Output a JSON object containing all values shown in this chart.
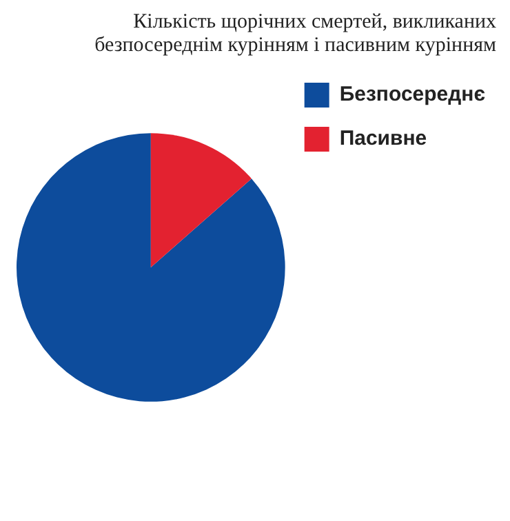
{
  "chart_data": {
    "type": "pie",
    "title": "Кількість щорічних смертей, викликаних безпосереднім курінням і пасивним курінням",
    "categories": [
      "Безпосереднє",
      "Пасивне"
    ],
    "values": [
      86.5,
      13.5
    ],
    "colors": [
      "#0d4c9c",
      "#e32230"
    ],
    "legend": "top right"
  }
}
